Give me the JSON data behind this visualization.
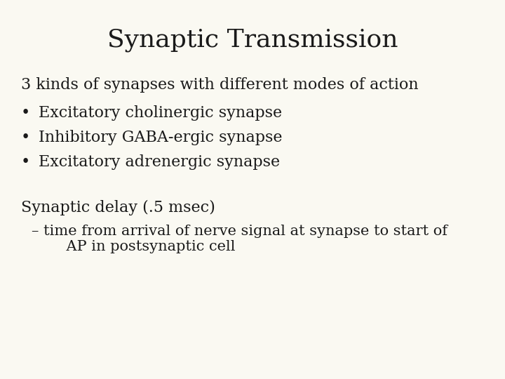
{
  "title": "Synaptic Transmission",
  "background_color": "#faf9f2",
  "text_color": "#1a1a1a",
  "title_fontsize": 26,
  "body_fontsize": 16,
  "subtitle_fontsize": 16,
  "sub_body_fontsize": 15,
  "font_family": "serif",
  "line1": "3 kinds of synapses with different modes of action",
  "bullets": [
    "Excitatory cholinergic synapse",
    "Inhibitory GABA-ergic synapse",
    "Excitatory adrenergic synapse"
  ],
  "section2_title": "Synaptic delay (.5 msec)",
  "section2_body_line1": "– time from arrival of nerve signal at synapse to start of",
  "section2_body_line2": "    AP in postsynaptic cell"
}
